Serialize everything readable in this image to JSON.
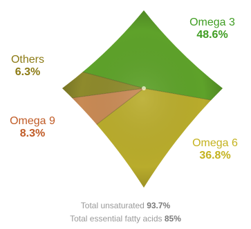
{
  "chart_data": {
    "type": "pie",
    "title": "",
    "series": [
      {
        "name": "Omega 3",
        "value": 48.6,
        "label": "48.6%",
        "color": "#5ea22a"
      },
      {
        "name": "Omega 6",
        "value": 36.8,
        "label": "36.8%",
        "color": "#b9ac2c"
      },
      {
        "name": "Omega 9",
        "value": 8.3,
        "label": "8.3%",
        "color": "#c88a55"
      },
      {
        "name": "Others",
        "value": 6.3,
        "label": "6.3%",
        "color": "#8e8a2c"
      }
    ],
    "legend": "none",
    "footnotes": [
      {
        "text": "Total unsaturated",
        "value": "93.7%"
      },
      {
        "text": "Total essential fatty acids",
        "value": "85%"
      }
    ]
  }
}
